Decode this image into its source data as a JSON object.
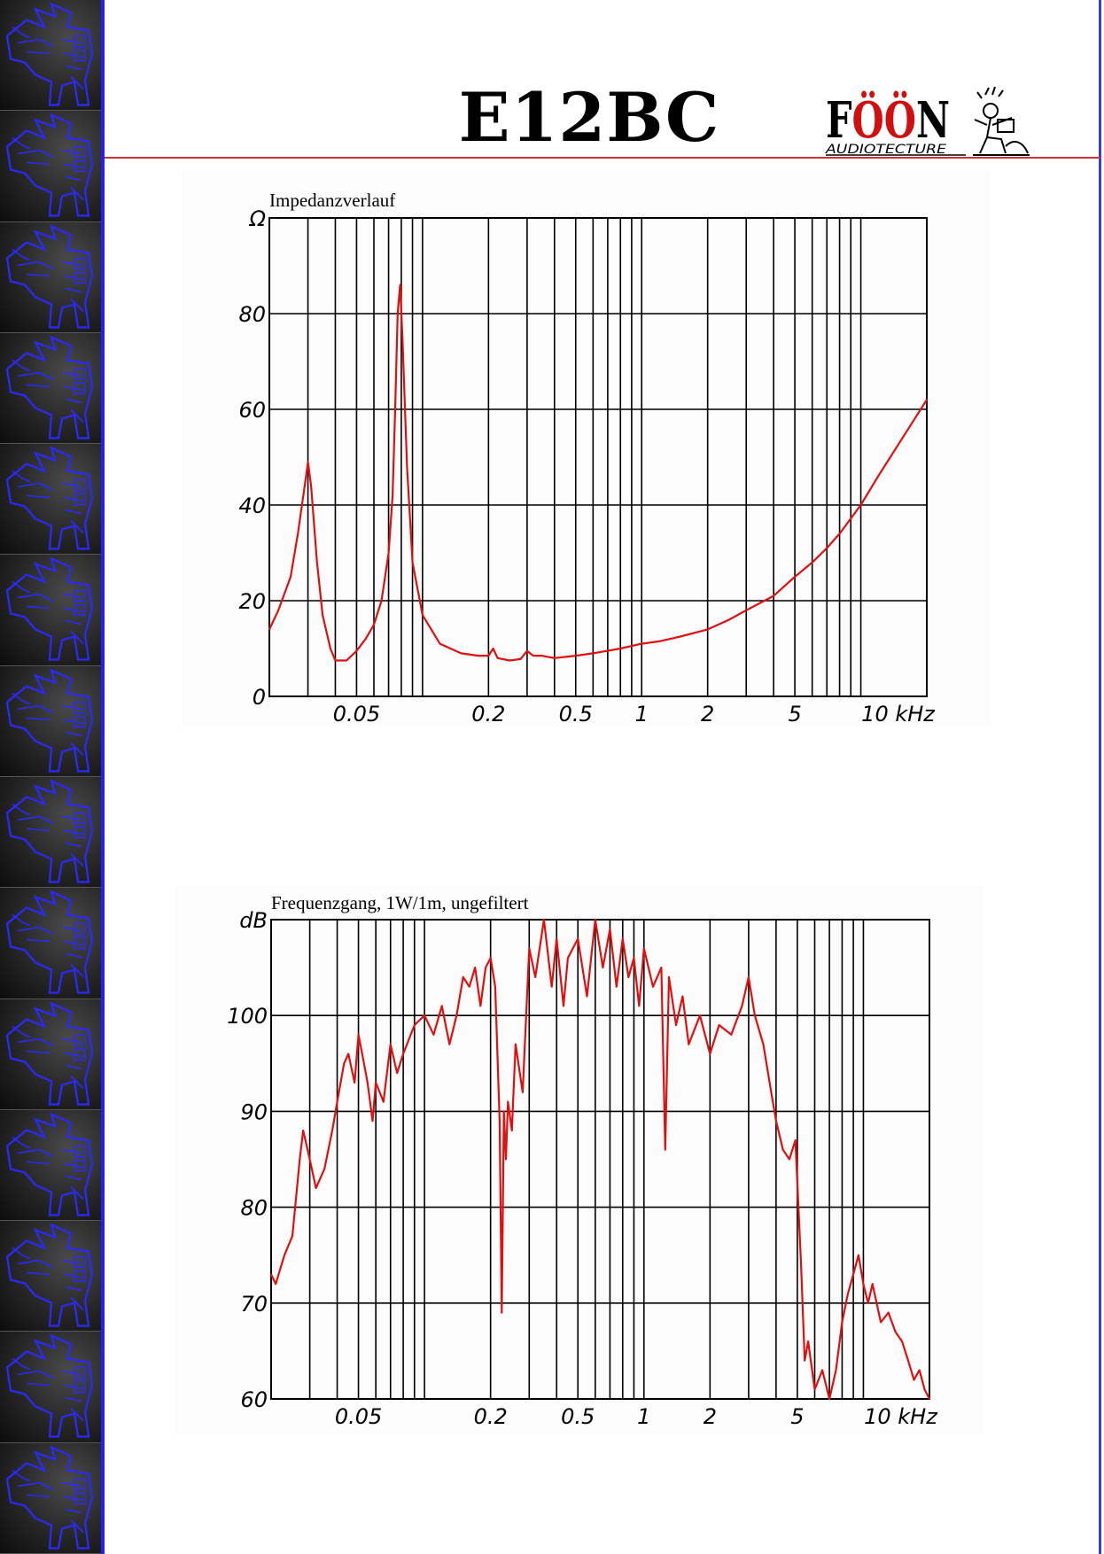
{
  "header": {
    "model": "E12BC",
    "brand": {
      "name": "FÖÖN",
      "tagline": "AUDIOTECTURE",
      "accent_color": "#d01010"
    }
  },
  "colors": {
    "curve": "#e01010",
    "grid": "#000000",
    "header_rule": "#d43030",
    "sidebar_edge": "#2222ee",
    "sidebar_tile_art": "#2a2aff"
  },
  "sidebar": {
    "tile_count": 14,
    "tile_icon": "winged-bull-relief-icon"
  },
  "chart_data": [
    {
      "type": "line",
      "title": "Impedanzverlauf",
      "ylabel": "Ω",
      "xlabel": "kHz",
      "x_scale": "log",
      "xlim": [
        0.02,
        20
      ],
      "ylim": [
        0,
        100
      ],
      "grid": true,
      "y_ticks": [
        {
          "value": 0,
          "label": "0"
        },
        {
          "value": 20,
          "label": "20"
        },
        {
          "value": 40,
          "label": "40"
        },
        {
          "value": 60,
          "label": "60"
        },
        {
          "value": 80,
          "label": "80"
        },
        {
          "value": 100,
          "label": "Ω"
        }
      ],
      "x_ticks": [
        {
          "value": 0.05,
          "label": "0.05"
        },
        {
          "value": 0.2,
          "label": "0.2"
        },
        {
          "value": 0.5,
          "label": "0.5"
        },
        {
          "value": 1,
          "label": "1"
        },
        {
          "value": 2,
          "label": "2"
        },
        {
          "value": 5,
          "label": "5"
        },
        {
          "value": 10,
          "label": "10 kHz"
        }
      ],
      "x": [
        0.02,
        0.022,
        0.025,
        0.027,
        0.029,
        0.03,
        0.031,
        0.033,
        0.035,
        0.038,
        0.04,
        0.045,
        0.05,
        0.055,
        0.06,
        0.065,
        0.07,
        0.073,
        0.075,
        0.077,
        0.079,
        0.081,
        0.085,
        0.09,
        0.1,
        0.12,
        0.15,
        0.18,
        0.2,
        0.21,
        0.22,
        0.25,
        0.28,
        0.3,
        0.32,
        0.35,
        0.4,
        0.5,
        0.6,
        0.8,
        1,
        1.2,
        1.5,
        2,
        2.5,
        3,
        4,
        5,
        6,
        7,
        8,
        10,
        12,
        15,
        20
      ],
      "y": [
        14,
        18,
        25,
        34,
        44,
        49,
        44,
        28,
        17,
        10,
        7.5,
        7.5,
        9.5,
        12,
        15,
        20,
        30,
        42,
        60,
        80,
        86,
        75,
        48,
        28,
        17,
        11,
        9,
        8.5,
        8.5,
        10,
        8,
        7.5,
        7.8,
        9.5,
        8.5,
        8.5,
        8,
        8.5,
        9,
        10,
        11,
        11.5,
        12.5,
        14,
        16,
        18,
        21,
        25,
        28,
        31,
        34,
        40,
        46,
        53,
        62
      ]
    },
    {
      "type": "line",
      "title": "Frequenzgang, 1W/1m, ungefiltert",
      "ylabel": "dB",
      "xlabel": "kHz",
      "x_scale": "log",
      "xlim": [
        0.02,
        20
      ],
      "ylim": [
        60,
        110
      ],
      "grid": true,
      "y_ticks": [
        {
          "value": 60,
          "label": "60"
        },
        {
          "value": 70,
          "label": "70"
        },
        {
          "value": 80,
          "label": "80"
        },
        {
          "value": 90,
          "label": "90"
        },
        {
          "value": 100,
          "label": "100"
        },
        {
          "value": 110,
          "label": "dB"
        }
      ],
      "x_ticks": [
        {
          "value": 0.05,
          "label": "0.05"
        },
        {
          "value": 0.2,
          "label": "0.2"
        },
        {
          "value": 0.5,
          "label": "0.5"
        },
        {
          "value": 1,
          "label": "1"
        },
        {
          "value": 2,
          "label": "2"
        },
        {
          "value": 5,
          "label": "5"
        },
        {
          "value": 10,
          "label": "10 kHz"
        }
      ],
      "x": [
        0.02,
        0.021,
        0.023,
        0.025,
        0.027,
        0.028,
        0.03,
        0.032,
        0.035,
        0.038,
        0.04,
        0.043,
        0.045,
        0.048,
        0.05,
        0.053,
        0.055,
        0.058,
        0.06,
        0.065,
        0.07,
        0.075,
        0.08,
        0.09,
        0.1,
        0.11,
        0.12,
        0.13,
        0.14,
        0.15,
        0.16,
        0.17,
        0.18,
        0.19,
        0.2,
        0.21,
        0.22,
        0.225,
        0.23,
        0.235,
        0.24,
        0.25,
        0.26,
        0.28,
        0.3,
        0.32,
        0.35,
        0.38,
        0.4,
        0.43,
        0.45,
        0.5,
        0.55,
        0.6,
        0.65,
        0.7,
        0.75,
        0.8,
        0.85,
        0.9,
        0.95,
        1,
        1.1,
        1.2,
        1.25,
        1.3,
        1.4,
        1.5,
        1.6,
        1.8,
        2,
        2.2,
        2.5,
        2.8,
        3,
        3.2,
        3.5,
        3.8,
        4,
        4.3,
        4.6,
        4.9,
        5.2,
        5.4,
        5.6,
        6,
        6.5,
        7,
        7.5,
        8,
        8.5,
        9,
        9.5,
        10,
        10.5,
        11,
        12,
        13,
        14,
        15,
        16,
        17,
        18,
        19,
        20
      ],
      "y": [
        73,
        72,
        75,
        77,
        85,
        88,
        85,
        82,
        84,
        88,
        91,
        95,
        96,
        93,
        98,
        95,
        93,
        89,
        93,
        91,
        97,
        94,
        96,
        99,
        100,
        98,
        101,
        97,
        100,
        104,
        103,
        105,
        101,
        105,
        106,
        103,
        89,
        69,
        90,
        85,
        91,
        88,
        97,
        92,
        107,
        104,
        110,
        103,
        108,
        101,
        106,
        108,
        102,
        110,
        105,
        109,
        103,
        108,
        104,
        106,
        101,
        107,
        103,
        105,
        86,
        104,
        99,
        102,
        97,
        100,
        96,
        99,
        98,
        101,
        104,
        100,
        97,
        92,
        89,
        86,
        85,
        87,
        74,
        64,
        66,
        61,
        63,
        60,
        63,
        68,
        71,
        73,
        75,
        72,
        70,
        72,
        68,
        69,
        67,
        66,
        64,
        62,
        63,
        61,
        60
      ]
    }
  ]
}
